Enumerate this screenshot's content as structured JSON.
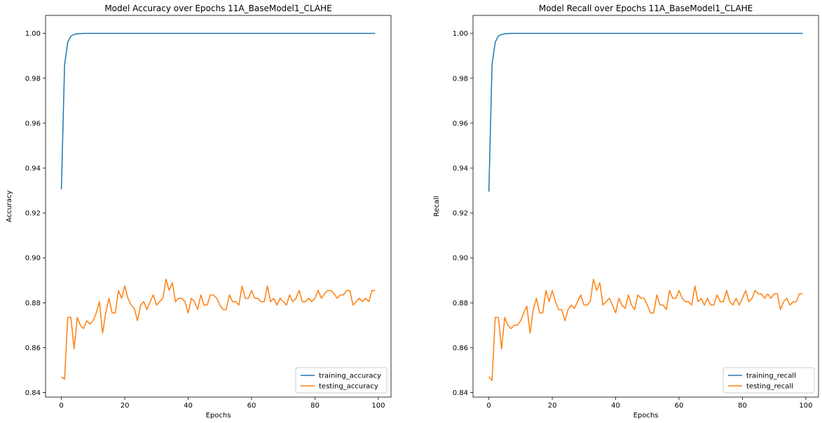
{
  "chart_data": [
    {
      "type": "line",
      "title": "Model Accuracy over Epochs 11A_BaseModel1_CLAHE",
      "xlabel": "Epochs",
      "ylabel": "Accuracy",
      "xlim": [
        -5,
        104
      ],
      "ylim": [
        0.838,
        1.008
      ],
      "xticks": [
        0,
        20,
        40,
        60,
        80,
        100
      ],
      "yticks": [
        0.84,
        0.86,
        0.88,
        0.9,
        0.92,
        0.94,
        0.96,
        0.98,
        1.0
      ],
      "ytick_labels": [
        "0.84",
        "0.86",
        "0.88",
        "0.90",
        "0.92",
        "0.94",
        "0.96",
        "0.98",
        "1.00"
      ],
      "grid": false,
      "legend_position": "lower-right",
      "x": [
        0,
        1,
        2,
        3,
        4,
        5,
        6,
        7,
        8,
        9,
        10,
        11,
        12,
        13,
        14,
        15,
        16,
        17,
        18,
        19,
        20,
        21,
        22,
        23,
        24,
        25,
        26,
        27,
        28,
        29,
        30,
        31,
        32,
        33,
        34,
        35,
        36,
        37,
        38,
        39,
        40,
        41,
        42,
        43,
        44,
        45,
        46,
        47,
        48,
        49,
        50,
        51,
        52,
        53,
        54,
        55,
        56,
        57,
        58,
        59,
        60,
        61,
        62,
        63,
        64,
        65,
        66,
        67,
        68,
        69,
        70,
        71,
        72,
        73,
        74,
        75,
        76,
        77,
        78,
        79,
        80,
        81,
        82,
        83,
        84,
        85,
        86,
        87,
        88,
        89,
        90,
        91,
        92,
        93,
        94,
        95,
        96,
        97,
        98,
        99
      ],
      "series": [
        {
          "name": "training_accuracy",
          "color": "#1f77b4",
          "values": [
            0.9305,
            0.986,
            0.996,
            0.9988,
            0.9995,
            0.9998,
            0.9999,
            1.0,
            1.0,
            1.0,
            1.0,
            1.0,
            1.0,
            1.0,
            1.0,
            1.0,
            1.0,
            1.0,
            1.0,
            1.0,
            1.0,
            1.0,
            1.0,
            1.0,
            1.0,
            1.0,
            1.0,
            1.0,
            1.0,
            1.0,
            1.0,
            1.0,
            1.0,
            1.0,
            1.0,
            1.0,
            1.0,
            1.0,
            1.0,
            1.0,
            1.0,
            1.0,
            1.0,
            1.0,
            1.0,
            1.0,
            1.0,
            1.0,
            1.0,
            1.0,
            1.0,
            1.0,
            1.0,
            1.0,
            1.0,
            1.0,
            1.0,
            1.0,
            1.0,
            1.0,
            1.0,
            1.0,
            1.0,
            1.0,
            1.0,
            1.0,
            1.0,
            1.0,
            1.0,
            1.0,
            1.0,
            1.0,
            1.0,
            1.0,
            1.0,
            1.0,
            1.0,
            1.0,
            1.0,
            1.0,
            1.0,
            1.0,
            1.0,
            1.0,
            1.0,
            1.0,
            1.0,
            1.0,
            1.0,
            1.0,
            1.0,
            1.0,
            1.0,
            1.0,
            1.0,
            1.0,
            1.0,
            1.0,
            1.0,
            1.0
          ]
        },
        {
          "name": "testing_accuracy",
          "color": "#ff7f0e",
          "values": [
            0.847,
            0.846,
            0.8735,
            0.8735,
            0.8595,
            0.8735,
            0.87,
            0.8685,
            0.872,
            0.8705,
            0.872,
            0.8755,
            0.8805,
            0.8665,
            0.8755,
            0.882,
            0.8755,
            0.8755,
            0.8855,
            0.882,
            0.8875,
            0.882,
            0.879,
            0.8775,
            0.872,
            0.879,
            0.8805,
            0.877,
            0.8805,
            0.8835,
            0.879,
            0.8805,
            0.882,
            0.8905,
            0.8855,
            0.889,
            0.8805,
            0.882,
            0.882,
            0.8805,
            0.8755,
            0.882,
            0.8805,
            0.877,
            0.8835,
            0.879,
            0.879,
            0.8835,
            0.8835,
            0.882,
            0.879,
            0.877,
            0.877,
            0.8835,
            0.8805,
            0.8805,
            0.879,
            0.8875,
            0.882,
            0.882,
            0.8855,
            0.882,
            0.882,
            0.8805,
            0.8805,
            0.8875,
            0.8805,
            0.882,
            0.879,
            0.882,
            0.8805,
            0.879,
            0.8835,
            0.8805,
            0.882,
            0.8855,
            0.8805,
            0.8805,
            0.882,
            0.8805,
            0.882,
            0.8855,
            0.882,
            0.884,
            0.8855,
            0.8855,
            0.884,
            0.882,
            0.8835,
            0.8835,
            0.8855,
            0.8855,
            0.879,
            0.8805,
            0.882,
            0.8805,
            0.882,
            0.8805,
            0.8855,
            0.8855
          ]
        }
      ]
    },
    {
      "type": "line",
      "title": "Model Recall over Epochs 11A_BaseModel1_CLAHE",
      "xlabel": "Epochs",
      "ylabel": "Recall",
      "xlim": [
        -5,
        104
      ],
      "ylim": [
        0.838,
        1.008
      ],
      "xticks": [
        0,
        20,
        40,
        60,
        80,
        100
      ],
      "yticks": [
        0.84,
        0.86,
        0.88,
        0.9,
        0.92,
        0.94,
        0.96,
        0.98,
        1.0
      ],
      "ytick_labels": [
        "0.84",
        "0.86",
        "0.88",
        "0.90",
        "0.92",
        "0.94",
        "0.96",
        "0.98",
        "1.00"
      ],
      "grid": false,
      "legend_position": "lower-right",
      "x": [
        0,
        1,
        2,
        3,
        4,
        5,
        6,
        7,
        8,
        9,
        10,
        11,
        12,
        13,
        14,
        15,
        16,
        17,
        18,
        19,
        20,
        21,
        22,
        23,
        24,
        25,
        26,
        27,
        28,
        29,
        30,
        31,
        32,
        33,
        34,
        35,
        36,
        37,
        38,
        39,
        40,
        41,
        42,
        43,
        44,
        45,
        46,
        47,
        48,
        49,
        50,
        51,
        52,
        53,
        54,
        55,
        56,
        57,
        58,
        59,
        60,
        61,
        62,
        63,
        64,
        65,
        66,
        67,
        68,
        69,
        70,
        71,
        72,
        73,
        74,
        75,
        76,
        77,
        78,
        79,
        80,
        81,
        82,
        83,
        84,
        85,
        86,
        87,
        88,
        89,
        90,
        91,
        92,
        93,
        94,
        95,
        96,
        97,
        98,
        99
      ],
      "series": [
        {
          "name": "training_recall",
          "color": "#1f77b4",
          "values": [
            0.9295,
            0.986,
            0.996,
            0.9988,
            0.9995,
            0.9998,
            0.9999,
            1.0,
            1.0,
            1.0,
            1.0,
            1.0,
            1.0,
            1.0,
            1.0,
            1.0,
            1.0,
            1.0,
            1.0,
            1.0,
            1.0,
            1.0,
            1.0,
            1.0,
            1.0,
            1.0,
            1.0,
            1.0,
            1.0,
            1.0,
            1.0,
            1.0,
            1.0,
            1.0,
            1.0,
            1.0,
            1.0,
            1.0,
            1.0,
            1.0,
            1.0,
            1.0,
            1.0,
            1.0,
            1.0,
            1.0,
            1.0,
            1.0,
            1.0,
            1.0,
            1.0,
            1.0,
            1.0,
            1.0,
            1.0,
            1.0,
            1.0,
            1.0,
            1.0,
            1.0,
            1.0,
            1.0,
            1.0,
            1.0,
            1.0,
            1.0,
            1.0,
            1.0,
            1.0,
            1.0,
            1.0,
            1.0,
            1.0,
            1.0,
            1.0,
            1.0,
            1.0,
            1.0,
            1.0,
            1.0,
            1.0,
            1.0,
            1.0,
            1.0,
            1.0,
            1.0,
            1.0,
            1.0,
            1.0,
            1.0,
            1.0,
            1.0,
            1.0,
            1.0,
            1.0,
            1.0,
            1.0,
            1.0,
            1.0,
            1.0
          ]
        },
        {
          "name": "testing_recall",
          "color": "#ff7f0e",
          "values": [
            0.847,
            0.8455,
            0.8735,
            0.8735,
            0.8595,
            0.8735,
            0.87,
            0.8685,
            0.87,
            0.87,
            0.872,
            0.8755,
            0.8785,
            0.8665,
            0.877,
            0.882,
            0.8755,
            0.8755,
            0.8855,
            0.8805,
            0.8855,
            0.8805,
            0.877,
            0.877,
            0.872,
            0.877,
            0.879,
            0.8775,
            0.8805,
            0.8835,
            0.879,
            0.879,
            0.8805,
            0.8905,
            0.8855,
            0.889,
            0.879,
            0.8805,
            0.882,
            0.879,
            0.8755,
            0.882,
            0.879,
            0.8775,
            0.8835,
            0.879,
            0.877,
            0.8835,
            0.882,
            0.882,
            0.879,
            0.8755,
            0.8755,
            0.8835,
            0.879,
            0.879,
            0.877,
            0.8855,
            0.882,
            0.882,
            0.8855,
            0.882,
            0.8805,
            0.8805,
            0.879,
            0.8875,
            0.8805,
            0.882,
            0.879,
            0.882,
            0.879,
            0.879,
            0.8835,
            0.8805,
            0.8805,
            0.8855,
            0.8805,
            0.879,
            0.882,
            0.879,
            0.882,
            0.8855,
            0.8805,
            0.882,
            0.8855,
            0.884,
            0.884,
            0.882,
            0.884,
            0.882,
            0.884,
            0.884,
            0.877,
            0.8805,
            0.882,
            0.879,
            0.8805,
            0.8805,
            0.884,
            0.884
          ]
        }
      ]
    }
  ]
}
